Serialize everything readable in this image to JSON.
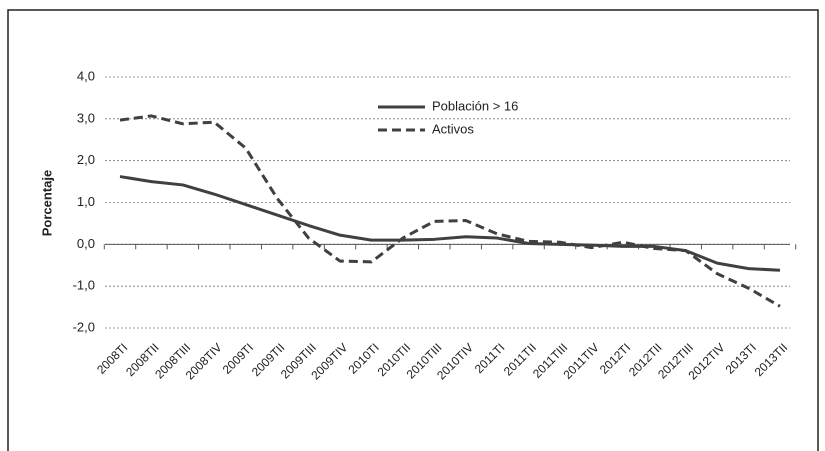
{
  "chart_data": {
    "type": "line",
    "y_label": "Porcentaje",
    "categories": [
      "2008TI",
      "2008TII",
      "2008TIII",
      "2008TIV",
      "2009TI",
      "2009TII",
      "2009TIII",
      "2009TIV",
      "2010TI",
      "2010TII",
      "2010TIII",
      "2010TIV",
      "2011TI",
      "2011TII",
      "2011TIII",
      "2011TIV",
      "2012TI",
      "2012TII",
      "2012TIII",
      "2012TIV",
      "2013TI",
      "2013TII"
    ],
    "series": [
      {
        "name": "Población > 16",
        "color": "#404040",
        "dashed": false,
        "values": [
          1.62,
          1.5,
          1.42,
          1.2,
          0.95,
          0.7,
          0.45,
          0.22,
          0.1,
          0.1,
          0.12,
          0.18,
          0.15,
          0.02,
          0.0,
          -0.02,
          -0.05,
          -0.05,
          -0.15,
          -0.45,
          -0.58,
          -0.62
        ]
      },
      {
        "name": "Activos",
        "color": "#404040",
        "dashed": true,
        "values": [
          2.97,
          3.07,
          2.88,
          2.92,
          2.3,
          1.1,
          0.15,
          -0.4,
          -0.42,
          0.15,
          0.55,
          0.57,
          0.25,
          0.07,
          0.05,
          -0.08,
          0.05,
          -0.1,
          -0.15,
          -0.7,
          -1.05,
          -1.48
        ]
      }
    ],
    "ylim": [
      -2,
      4
    ],
    "yticks": [
      {
        "value": -2,
        "label": "-2,0"
      },
      {
        "value": -1,
        "label": "-1,0"
      },
      {
        "value": 0,
        "label": "0,0"
      },
      {
        "value": 1,
        "label": "1,0"
      },
      {
        "value": 2,
        "label": "2,0"
      },
      {
        "value": 3,
        "label": "3,0"
      },
      {
        "value": 4,
        "label": "4,0"
      }
    ],
    "grid": true
  }
}
